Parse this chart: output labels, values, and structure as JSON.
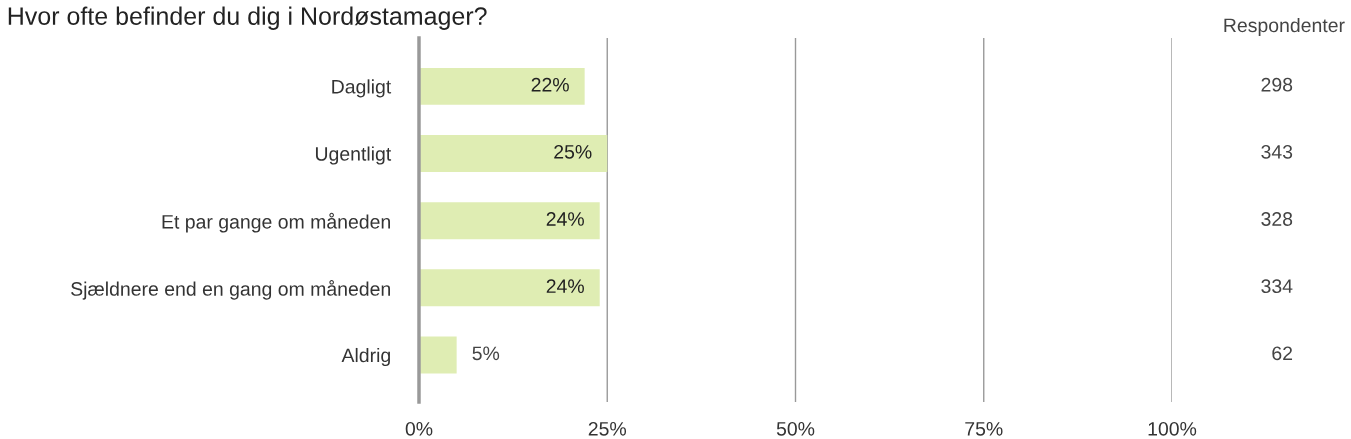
{
  "chart_data": {
    "type": "bar",
    "orientation": "horizontal",
    "title": "Hvor ofte befinder du dig i Nordøstamager?",
    "categories": [
      "Dagligt",
      "Ugentligt",
      "Et par gange om måneden",
      "Sjældnere end en gang om måneden",
      "Aldrig"
    ],
    "values": [
      22,
      25,
      24,
      24,
      5
    ],
    "value_labels": [
      "22%",
      "25%",
      "24%",
      "24%",
      "5%"
    ],
    "color": "#dfedb3",
    "xlim": [
      0,
      100
    ],
    "xticks": [
      {
        "value": 0,
        "label": "0%"
      },
      {
        "value": 25,
        "label": "25%"
      },
      {
        "value": 50,
        "label": "50%"
      },
      {
        "value": 75,
        "label": "75%"
      },
      {
        "value": 100,
        "label": "100%"
      }
    ],
    "grid": "x",
    "legend": false,
    "annotations": [
      "Respondenter",
      "298",
      "343",
      "328",
      "334",
      "62"
    ]
  }
}
